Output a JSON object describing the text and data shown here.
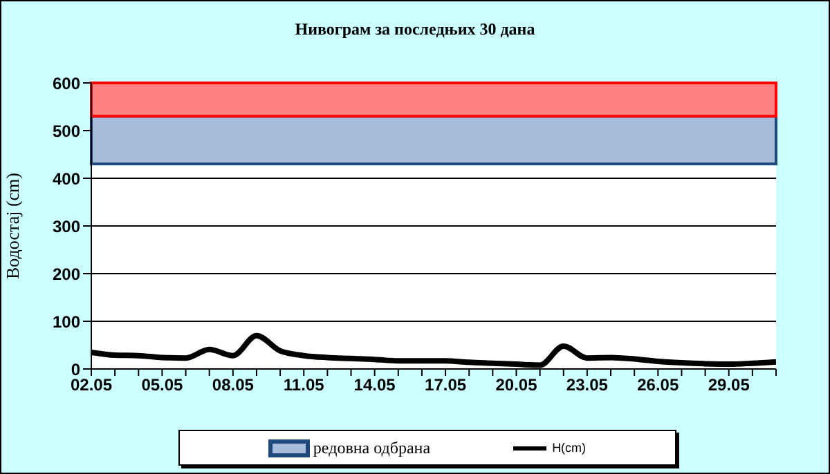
{
  "chart_data": {
    "type": "line",
    "title": "Нивограм за последњих 30 дана",
    "ylabel": "Водостај (cm)",
    "categories": [
      "02.05",
      null,
      null,
      "05.05",
      null,
      null,
      "08.05",
      null,
      null,
      "11.05",
      null,
      null,
      "14.05",
      null,
      null,
      "17.05",
      null,
      null,
      "20.05",
      null,
      null,
      "23.05",
      null,
      null,
      "26.05",
      null,
      null,
      "29.05",
      null,
      null
    ],
    "series": [
      {
        "name": "H(cm)",
        "color": "#000000",
        "values": [
          35,
          29,
          28,
          24,
          23,
          41,
          28,
          70,
          38,
          28,
          24,
          22,
          20,
          17,
          17,
          17,
          14,
          12,
          10,
          8,
          48,
          23,
          24,
          21,
          16,
          13,
          11,
          10,
          12,
          15
        ]
      }
    ],
    "ylim": [
      0,
      600
    ],
    "yticks": [
      0,
      100,
      200,
      300,
      400,
      500,
      600
    ],
    "grid": "y",
    "legend": "bottom",
    "marker": "none",
    "bands": [
      {
        "axis": "y",
        "from": 430,
        "to": 530,
        "label": "редовна одбрана",
        "color": "#a6bddb"
      },
      {
        "axis": "y",
        "from": 530,
        "to": 600,
        "color": "#ff8080"
      }
    ]
  }
}
